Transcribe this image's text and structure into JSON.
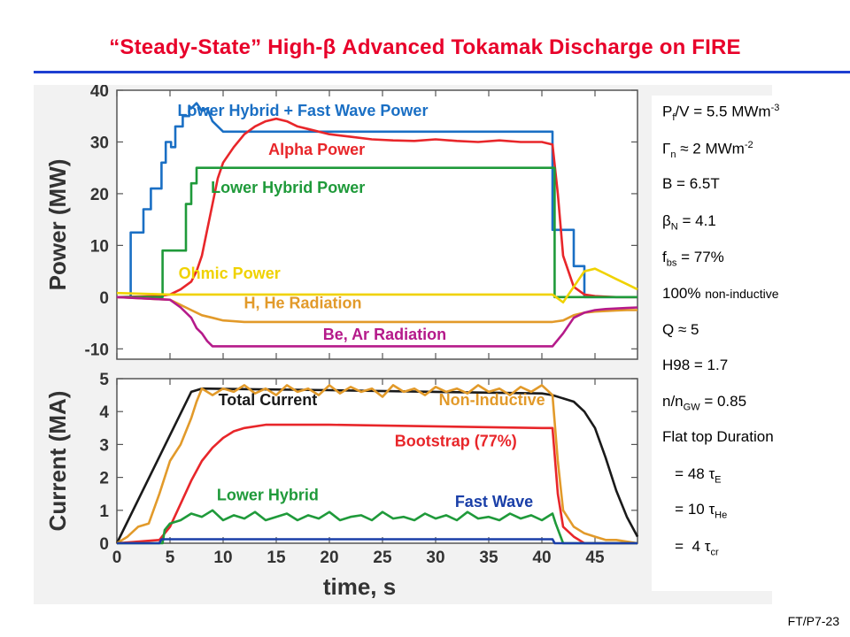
{
  "slide": {
    "title": "“Steady-State” High-β Advanced Tokamak Discharge on FIRE",
    "id": "FT/P7-23"
  },
  "params": [
    {
      "main": "P",
      "sub": "f",
      "rest": "/V = 5.5 MWm",
      "sup": "-3"
    },
    {
      "main": "Γ",
      "sub": "n",
      "rest": " ≈ 2 MWm",
      "sup": "-2"
    },
    {
      "main": "B = 6.5T"
    },
    {
      "main": "β",
      "sub": "N",
      "rest": " = 4.1"
    },
    {
      "main": "f",
      "sub": "bs",
      "rest": " = 77%"
    },
    {
      "main": "100% ",
      "small": "non-inductive"
    },
    {
      "main": "Q ≈ 5"
    },
    {
      "main": "H98 = 1.7"
    },
    {
      "main": "n/n",
      "sub": "GW",
      "rest": " = 0.85"
    },
    {
      "main": "Flat top Duration"
    },
    {
      "main": "   = 48 τ",
      "sub": "E"
    },
    {
      "main": "   = 10 τ",
      "sub": "He"
    },
    {
      "main": "   =  4 τ",
      "sub": "cr"
    }
  ],
  "colors": {
    "blue": "#1a6fc4",
    "red": "#e8262a",
    "green": "#1f9a3a",
    "yellow": "#f0d200",
    "orange": "#e29a2a",
    "magenta": "#b51a8a",
    "black": "#1a1a1a",
    "darkblue": "#1a3fa8"
  },
  "chart_data": [
    {
      "type": "line",
      "ylabel": "Power (MW)",
      "xlim": [
        0,
        49
      ],
      "ylim": [
        -12,
        40
      ],
      "yticks": [
        -10,
        0,
        10,
        20,
        30,
        40
      ],
      "series": [
        {
          "name": "Lower Hybrid + Fast Wave Power",
          "color": "blue",
          "x": [
            0,
            1.3,
            1.3,
            2.5,
            2.5,
            3.2,
            3.2,
            4.2,
            4.2,
            4.6,
            4.6,
            5.1,
            5.1,
            5.5,
            5.5,
            6.2,
            6.2,
            6.8,
            6.8,
            7.0,
            7.5,
            8.0,
            8.5,
            9.0,
            9.5,
            10.0,
            41.0,
            41.0,
            43.0,
            43.0,
            44.0,
            44.0,
            49
          ],
          "y": [
            0,
            0,
            12.5,
            12.5,
            17,
            17,
            21,
            21,
            26,
            26,
            30,
            30,
            29,
            29,
            33,
            33,
            35,
            35,
            37,
            36.5,
            37.5,
            36,
            36.5,
            34,
            33,
            32,
            32,
            13,
            13,
            6,
            6,
            0,
            0
          ]
        },
        {
          "name": "Alpha Power",
          "color": "red",
          "x": [
            0,
            4,
            5,
            6,
            7,
            7.5,
            8,
            8.5,
            9,
            9.5,
            10,
            11,
            12,
            13,
            14,
            15,
            16,
            17,
            18,
            20,
            22,
            24,
            26,
            28,
            30,
            32,
            34,
            36,
            38,
            40,
            41,
            41.5,
            42,
            43,
            44,
            45,
            46,
            47,
            48,
            49
          ],
          "y": [
            0,
            0.2,
            0.5,
            1.5,
            3,
            5,
            8,
            13,
            18,
            23,
            26,
            29,
            31.5,
            33,
            34,
            34.5,
            34,
            33,
            32.5,
            31.5,
            31,
            30.5,
            30.3,
            30.2,
            30.5,
            30.2,
            30,
            30.3,
            30,
            30,
            29.5,
            20,
            8,
            2,
            0.5,
            0.2,
            0.1,
            0,
            0,
            0
          ]
        },
        {
          "name": "Lower Hybrid Power",
          "color": "green",
          "x": [
            0,
            4.3,
            4.3,
            6.5,
            6.5,
            7.0,
            7.0,
            7.5,
            7.5,
            41.2,
            41.2,
            49
          ],
          "y": [
            0,
            0,
            9,
            9,
            18,
            18,
            22,
            22,
            25,
            25,
            0,
            0
          ]
        },
        {
          "name": "Ohmic Power",
          "color": "yellow",
          "x": [
            0,
            5,
            10,
            20,
            30,
            40,
            41,
            42,
            43,
            44,
            45,
            46,
            47,
            48,
            49
          ],
          "y": [
            0.8,
            0.5,
            0.5,
            0.5,
            0.5,
            0.5,
            0.5,
            -1,
            2,
            5,
            5.5,
            4.5,
            3.5,
            2.5,
            1.5
          ]
        },
        {
          "name": "H, He Radiation",
          "color": "orange",
          "x": [
            0,
            5,
            7,
            8,
            9,
            10,
            12,
            20,
            30,
            41,
            42,
            43,
            44,
            45,
            46,
            47,
            48,
            49
          ],
          "y": [
            0,
            -0.5,
            -2.5,
            -3.5,
            -4,
            -4.5,
            -4.8,
            -4.8,
            -4.8,
            -4.8,
            -4.5,
            -3.5,
            -3,
            -2.8,
            -2.7,
            -2.6,
            -2.5,
            -2.5
          ]
        },
        {
          "name": "Be, Ar Radiation",
          "color": "magenta",
          "x": [
            0,
            5,
            6,
            7,
            7.5,
            8,
            8.5,
            9,
            10,
            20,
            30,
            41,
            42,
            43,
            44,
            45,
            46,
            47,
            48,
            49
          ],
          "y": [
            0,
            -0.5,
            -2,
            -4,
            -6,
            -7,
            -8.5,
            -9.5,
            -9.5,
            -9.5,
            -9.5,
            -9.5,
            -7,
            -4,
            -3,
            -2.5,
            -2.3,
            -2.2,
            -2.1,
            -2
          ]
        }
      ],
      "annotations": [
        {
          "text": "Lower Hybrid + Fast Wave Power",
          "color": "blue",
          "x": 17.5,
          "y": 35
        },
        {
          "text": "Alpha Power",
          "color": "red",
          "x": 18.8,
          "y": 27.5
        },
        {
          "text": "Lower Hybrid Power",
          "color": "green",
          "x": 16.1,
          "y": 20.2
        },
        {
          "text": "Ohmic Power",
          "color": "yellow",
          "x": 10.6,
          "y": 3.6
        },
        {
          "text": "H, He Radiation",
          "color": "orange",
          "x": 17.5,
          "y": -2.2
        },
        {
          "text": "Be, Ar Radiation",
          "color": "magenta",
          "x": 25.2,
          "y": -8.2
        }
      ]
    },
    {
      "type": "line",
      "xlabel": "time, s",
      "ylabel": "Current (MA)",
      "xlim": [
        0,
        49
      ],
      "ylim": [
        0,
        5
      ],
      "xticks": [
        0,
        5,
        10,
        15,
        20,
        25,
        30,
        35,
        40,
        45
      ],
      "yticks": [
        0,
        1,
        2,
        3,
        4,
        5
      ],
      "series": [
        {
          "name": "Total Current",
          "color": "black",
          "x": [
            0,
            7,
            8,
            20,
            30,
            40,
            41,
            43,
            44,
            45,
            46,
            47,
            48,
            49
          ],
          "y": [
            0,
            4.6,
            4.7,
            4.65,
            4.6,
            4.55,
            4.5,
            4.3,
            4.0,
            3.5,
            2.6,
            1.6,
            0.8,
            0.2
          ]
        },
        {
          "name": "Non-Inductive",
          "color": "orange",
          "x": [
            0,
            1,
            2,
            3,
            4,
            5,
            6,
            7,
            7.5,
            8,
            9,
            10,
            11,
            12,
            13,
            14,
            15,
            16,
            17,
            18,
            19,
            20,
            21,
            22,
            23,
            24,
            25,
            26,
            27,
            28,
            29,
            30,
            31,
            32,
            33,
            34,
            35,
            36,
            37,
            38,
            39,
            40,
            41,
            41.5,
            42,
            43,
            44,
            45,
            46,
            47,
            48,
            49
          ],
          "y": [
            0,
            0.2,
            0.5,
            0.6,
            1.5,
            2.5,
            3.0,
            3.8,
            4.3,
            4.7,
            4.5,
            4.7,
            4.6,
            4.8,
            4.55,
            4.7,
            4.5,
            4.8,
            4.6,
            4.7,
            4.5,
            4.8,
            4.55,
            4.75,
            4.6,
            4.7,
            4.45,
            4.8,
            4.6,
            4.7,
            4.5,
            4.75,
            4.6,
            4.7,
            4.55,
            4.8,
            4.6,
            4.7,
            4.5,
            4.75,
            4.6,
            4.8,
            4.5,
            2.5,
            1.0,
            0.5,
            0.3,
            0.2,
            0.1,
            0.1,
            0.05,
            0
          ]
        },
        {
          "name": "Bootstrap (77%)",
          "color": "red",
          "x": [
            0,
            4,
            5,
            6,
            7,
            8,
            9,
            10,
            11,
            12,
            14,
            20,
            30,
            40,
            41,
            41.5,
            42,
            43,
            44,
            49
          ],
          "y": [
            0,
            0.1,
            0.5,
            1.2,
            1.9,
            2.5,
            2.9,
            3.2,
            3.4,
            3.5,
            3.6,
            3.6,
            3.55,
            3.5,
            3.5,
            1.5,
            0.5,
            0.2,
            0,
            0
          ]
        },
        {
          "name": "Lower Hybrid",
          "color": "green",
          "x": [
            0,
            4.3,
            4.5,
            5,
            6,
            7,
            8,
            9,
            10,
            11,
            12,
            13,
            14,
            15,
            16,
            17,
            18,
            19,
            20,
            21,
            22,
            23,
            24,
            25,
            26,
            27,
            28,
            29,
            30,
            31,
            32,
            33,
            34,
            35,
            36,
            37,
            38,
            39,
            40,
            41,
            41.3,
            42,
            49
          ],
          "y": [
            0,
            0,
            0.4,
            0.6,
            0.7,
            0.9,
            0.8,
            1.0,
            0.7,
            0.85,
            0.75,
            0.95,
            0.7,
            0.8,
            0.9,
            0.7,
            0.85,
            0.75,
            0.95,
            0.7,
            0.8,
            0.85,
            0.7,
            0.95,
            0.75,
            0.8,
            0.7,
            0.9,
            0.75,
            0.85,
            0.7,
            0.95,
            0.75,
            0.8,
            0.7,
            0.9,
            0.75,
            0.85,
            0.7,
            0.9,
            0.6,
            0,
            0
          ]
        },
        {
          "name": "Fast Wave",
          "color": "darkblue",
          "x": [
            0,
            4,
            4.2,
            41,
            41.2,
            49
          ],
          "y": [
            0,
            0,
            0.12,
            0.12,
            0,
            0
          ]
        }
      ],
      "annotations": [
        {
          "text": "Total Current",
          "color": "black",
          "x": 14.2,
          "y": 4.2
        },
        {
          "text": "Non-Inductive",
          "color": "orange",
          "x": 35.3,
          "y": 4.2
        },
        {
          "text": "Bootstrap (77%)",
          "color": "red",
          "x": 31.9,
          "y": 2.95
        },
        {
          "text": "Lower Hybrid",
          "color": "green",
          "x": 14.2,
          "y": 1.3
        },
        {
          "text": "Fast Wave",
          "color": "darkblue",
          "x": 35.5,
          "y": 1.1
        }
      ]
    }
  ]
}
